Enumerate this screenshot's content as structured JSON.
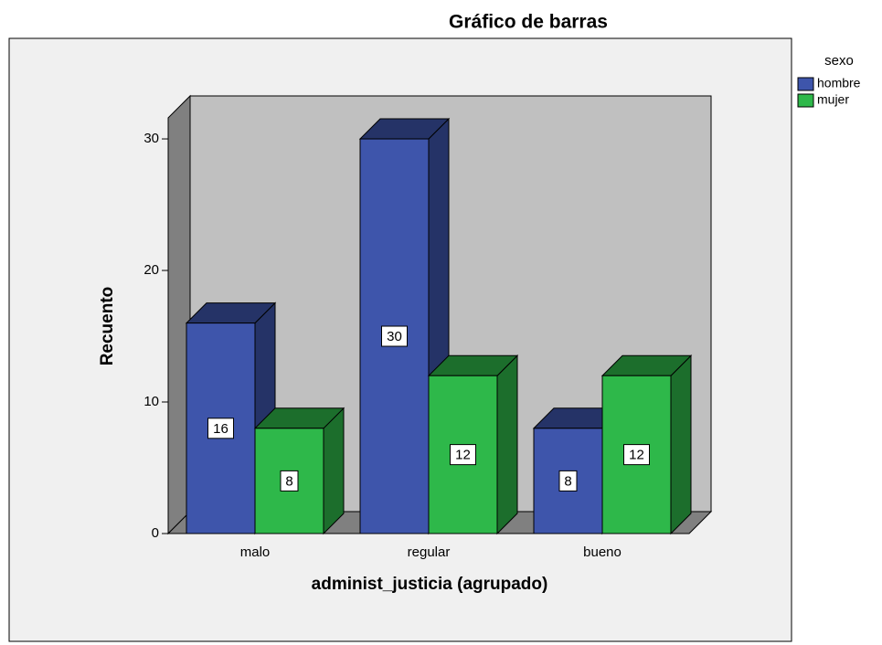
{
  "chart_data": {
    "type": "bar3d",
    "title": "Gráfico de barras",
    "categories": [
      "malo",
      "regular",
      "bueno"
    ],
    "series": [
      {
        "name": "hombre",
        "color": "#3e55ab",
        "values": [
          16,
          30,
          8
        ]
      },
      {
        "name": "mujer",
        "color": "#2eb84a",
        "values": [
          8,
          12,
          12
        ]
      }
    ],
    "legend_title": "sexo",
    "x_label": "administ_justicia (agrupado)",
    "y_label": "Recuento",
    "ylim": [
      0,
      31.6
    ],
    "yticks": [
      0,
      10,
      20,
      30
    ],
    "legend": "right"
  }
}
